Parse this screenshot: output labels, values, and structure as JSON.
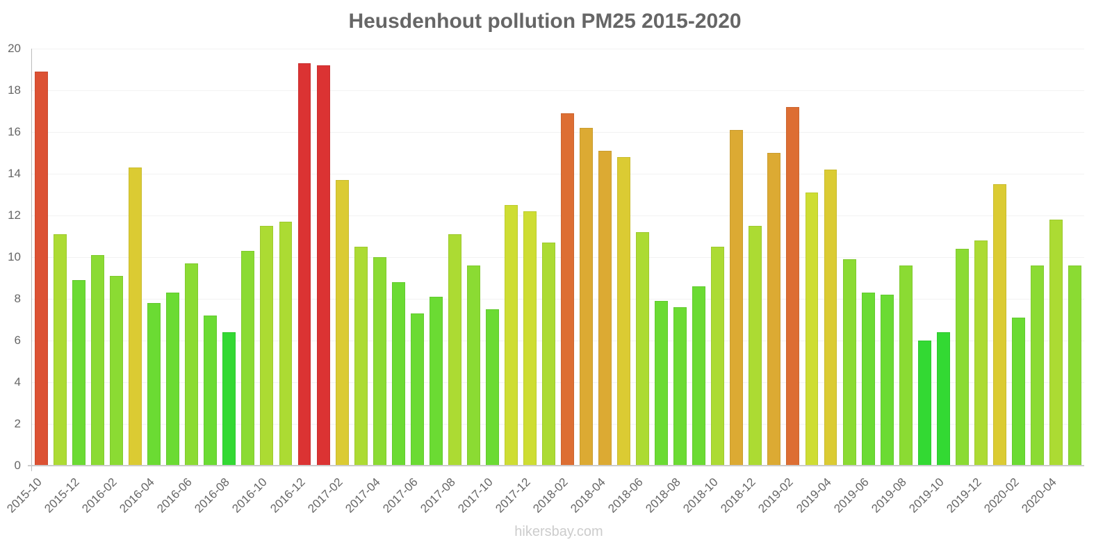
{
  "chart_data": {
    "type": "bar",
    "title": "Heusdenhout pollution PM25 2015-2020",
    "xlabel": "",
    "ylabel": "",
    "ylim": [
      0,
      20
    ],
    "yticks": [
      0,
      2,
      4,
      6,
      8,
      10,
      12,
      14,
      16,
      18,
      20
    ],
    "grid": true,
    "legend": null,
    "categories": [
      "2015-10",
      "2015-11",
      "2015-12",
      "2016-01",
      "2016-02",
      "2016-03",
      "2016-04",
      "2016-05",
      "2016-06",
      "2016-07",
      "2016-08",
      "2016-09",
      "2016-10",
      "2016-11",
      "2016-12",
      "2017-01",
      "2017-02",
      "2017-03",
      "2017-04",
      "2017-05",
      "2017-06",
      "2017-07",
      "2017-08",
      "2017-09",
      "2017-10",
      "2017-11",
      "2017-12",
      "2018-01",
      "2018-02",
      "2018-03",
      "2018-04",
      "2018-05",
      "2018-06",
      "2018-07",
      "2018-08",
      "2018-09",
      "2018-10",
      "2018-11",
      "2018-12",
      "2019-01",
      "2019-02",
      "2019-03",
      "2019-04",
      "2019-05",
      "2019-06",
      "2019-07",
      "2019-08",
      "2019-09",
      "2019-10",
      "2019-11",
      "2019-12",
      "2020-01",
      "2020-02",
      "2020-03",
      "2020-04",
      "2020-05"
    ],
    "xtick_labels": [
      "2015-10",
      "2015-12",
      "2016-02",
      "2016-04",
      "2016-06",
      "2016-08",
      "2016-10",
      "2016-12",
      "2017-02",
      "2017-04",
      "2017-06",
      "2017-08",
      "2017-10",
      "2017-12",
      "2018-02",
      "2018-04",
      "2018-06",
      "2018-08",
      "2018-10",
      "2018-12",
      "2019-02",
      "2019-04",
      "2019-06",
      "2019-08",
      "2019-10",
      "2019-12",
      "2020-02",
      "2020-04"
    ],
    "values": [
      18.9,
      11.1,
      8.9,
      10.1,
      9.1,
      14.3,
      7.8,
      8.3,
      9.7,
      7.2,
      6.4,
      10.3,
      11.5,
      11.7,
      19.3,
      19.2,
      13.7,
      10.5,
      10.0,
      8.8,
      7.3,
      8.1,
      11.1,
      9.6,
      7.5,
      12.5,
      12.2,
      10.7,
      16.9,
      16.2,
      15.1,
      14.8,
      11.2,
      7.9,
      7.6,
      8.6,
      10.5,
      16.1,
      11.5,
      15.0,
      17.2,
      13.1,
      14.2,
      9.9,
      8.3,
      8.2,
      9.6,
      6.0,
      6.4,
      10.4,
      10.8,
      13.5,
      7.1,
      9.6,
      11.8,
      9.6
    ],
    "color_scale": [
      {
        "max": 6.5,
        "color": "#33d933"
      },
      {
        "max": 9.0,
        "color": "#6bdb33"
      },
      {
        "max": 10.4,
        "color": "#8bdb33"
      },
      {
        "max": 12.0,
        "color": "#acdb33"
      },
      {
        "max": 13.3,
        "color": "#cedd33"
      },
      {
        "max": 14.9,
        "color": "#dbcb33"
      },
      {
        "max": 16.5,
        "color": "#dcaa33"
      },
      {
        "max": 17.5,
        "color": "#dd6e33"
      },
      {
        "max": 19.0,
        "color": "#dc5133"
      },
      {
        "max": 20.0,
        "color": "#db3333"
      }
    ]
  },
  "watermark": "hikersbay.com"
}
